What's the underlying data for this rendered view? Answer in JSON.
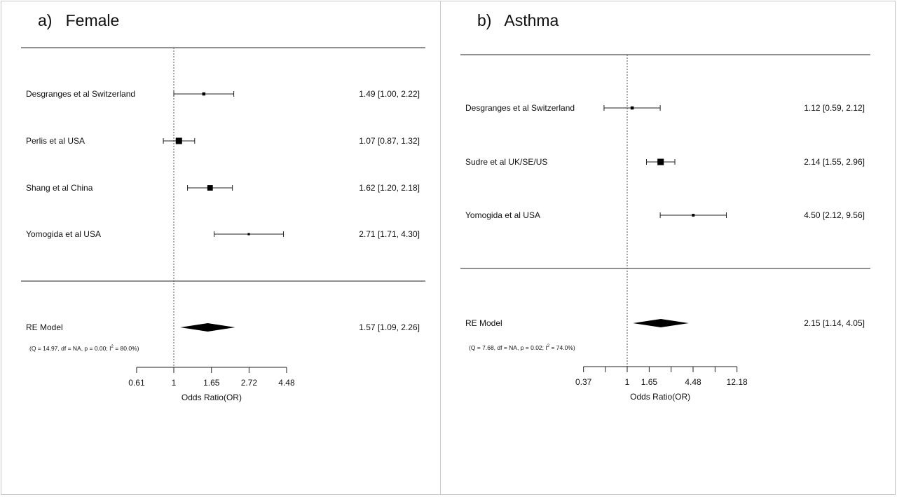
{
  "chart_data": [
    {
      "type": "forest",
      "panel_label": "a)",
      "title": "Female",
      "xlabel": "Odds Ratio(OR)",
      "scale": "log",
      "reference_line": 1,
      "xticks": [
        0.61,
        1,
        1.65,
        2.72,
        4.48
      ],
      "xtick_labels": [
        "0.61",
        "1",
        "1.65",
        "2.72",
        "4.48"
      ],
      "studies": [
        {
          "label": "Desgranges et al Switzerland",
          "or": 1.49,
          "lower": 1.0,
          "upper": 2.22,
          "ci_text": "1.49 [1.00, 2.22]",
          "weight": 2
        },
        {
          "label": "Perlis et al USA",
          "or": 1.07,
          "lower": 0.87,
          "upper": 1.32,
          "ci_text": "1.07 [0.87, 1.32]",
          "weight": 8
        },
        {
          "label": "Shang et al China",
          "or": 1.62,
          "lower": 1.2,
          "upper": 2.18,
          "ci_text": "1.62 [1.20, 2.18]",
          "weight": 6
        },
        {
          "label": "Yomogida et al USA",
          "or": 2.71,
          "lower": 1.71,
          "upper": 4.3,
          "ci_text": "2.71 [1.71, 4.30]",
          "weight": 1
        }
      ],
      "summary": {
        "label": "RE Model",
        "or": 1.57,
        "lower": 1.09,
        "upper": 2.26,
        "ci_text": "1.57 [1.09, 2.26]"
      },
      "heterogeneity": {
        "prefix": "(Q = 14.97, df = NA, p = 0.00; I",
        "sup": "2",
        "suffix": " = 80.0%)"
      }
    },
    {
      "type": "forest",
      "panel_label": "b)",
      "title": "Asthma",
      "xlabel": "Odds Ratio(OR)",
      "scale": "log",
      "reference_line": 1,
      "xticks": [
        0.37,
        1,
        1.65,
        4.48,
        12.18
      ],
      "xtick_labels": [
        "0.37",
        "1",
        "1.65",
        "4.48",
        "12.18"
      ],
      "minor_ticks": [
        0.61,
        2.72,
        7.39
      ],
      "studies": [
        {
          "label": "Desgranges et al Switzerland",
          "or": 1.12,
          "lower": 0.59,
          "upper": 2.12,
          "ci_text": "1.12 [0.59, 2.12]",
          "weight": 2
        },
        {
          "label": "Sudre et al UK/SE/US",
          "or": 2.14,
          "lower": 1.55,
          "upper": 2.96,
          "ci_text": "2.14 [1.55, 2.96]",
          "weight": 8
        },
        {
          "label": "Yomogida et al USA",
          "or": 4.5,
          "lower": 2.12,
          "upper": 9.56,
          "ci_text": "4.50 [2.12, 9.56]",
          "weight": 1.5
        }
      ],
      "summary": {
        "label": "RE Model",
        "or": 2.15,
        "lower": 1.14,
        "upper": 4.05,
        "ci_text": "2.15 [1.14, 4.05]"
      },
      "heterogeneity": {
        "prefix": "(Q = 7.68, df = NA, p = 0.02; I",
        "sup": "2",
        "suffix": " = 74.0%)"
      }
    }
  ]
}
